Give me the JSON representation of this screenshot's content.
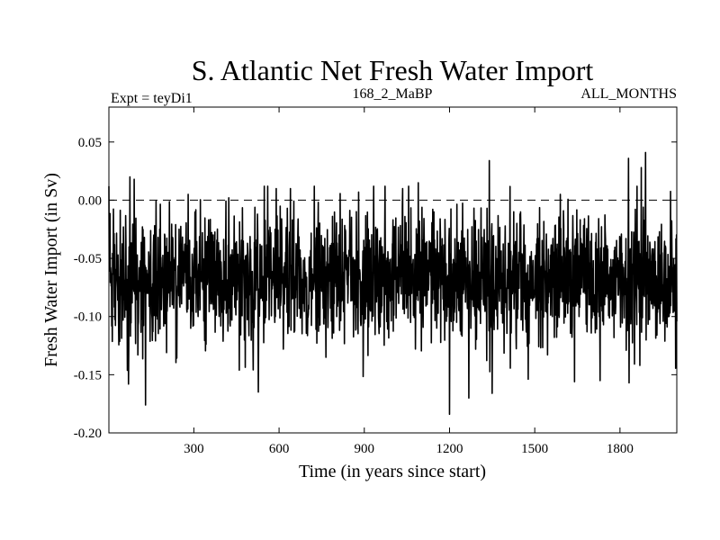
{
  "chart_data": {
    "type": "line",
    "title": "S. Atlantic Net Fresh Water Import",
    "subtitle_left": "Expt = teyDi1",
    "subtitle_center": "168_2_MaBP",
    "subtitle_right": "ALL_MONTHS",
    "xlabel": "Time (in years since start)",
    "ylabel": "Fresh Water Import (in Sv)",
    "xlim": [
      1,
      2000
    ],
    "ylim": [
      -0.2,
      0.08
    ],
    "xticks": [
      300,
      600,
      900,
      1200,
      1500,
      1800
    ],
    "xtick_labels": [
      "300",
      "600",
      "900",
      "1200",
      "1500",
      "1800"
    ],
    "yticks": [
      -0.2,
      -0.15,
      -0.1,
      -0.05,
      0.0,
      0.05
    ],
    "ytick_labels": [
      "-0.20",
      "-0.15",
      "-0.10",
      "-0.05",
      "0.00",
      "0.05"
    ],
    "reference_line": {
      "y": 0.0,
      "style": "dashed"
    },
    "series": [
      {
        "name": "S. Atlantic net fresh water import",
        "mean": -0.068,
        "std": 0.028,
        "n_points": 2000,
        "noise_seed": 168,
        "annotated_values": [
          {
            "x": 75,
            "y": 0.02
          },
          {
            "x": 90,
            "y": 0.018
          },
          {
            "x": 70,
            "y": -0.158
          },
          {
            "x": 130,
            "y": -0.176
          },
          {
            "x": 280,
            "y": 0.005
          },
          {
            "x": 460,
            "y": -0.146
          },
          {
            "x": 560,
            "y": 0.012
          },
          {
            "x": 590,
            "y": 0.01
          },
          {
            "x": 615,
            "y": -0.128
          },
          {
            "x": 640,
            "y": 0.01
          },
          {
            "x": 880,
            "y": 0.007
          },
          {
            "x": 1035,
            "y": 0.01
          },
          {
            "x": 1090,
            "y": 0.015
          },
          {
            "x": 1200,
            "y": -0.184
          },
          {
            "x": 1340,
            "y": 0.034
          },
          {
            "x": 1350,
            "y": -0.166
          },
          {
            "x": 1590,
            "y": 0.005
          },
          {
            "x": 1640,
            "y": -0.156
          },
          {
            "x": 1730,
            "y": -0.155
          },
          {
            "x": 1830,
            "y": 0.036
          },
          {
            "x": 1890,
            "y": 0.041
          },
          {
            "x": 1875,
            "y": 0.028
          },
          {
            "x": 1870,
            "y": -0.142
          }
        ]
      }
    ]
  }
}
